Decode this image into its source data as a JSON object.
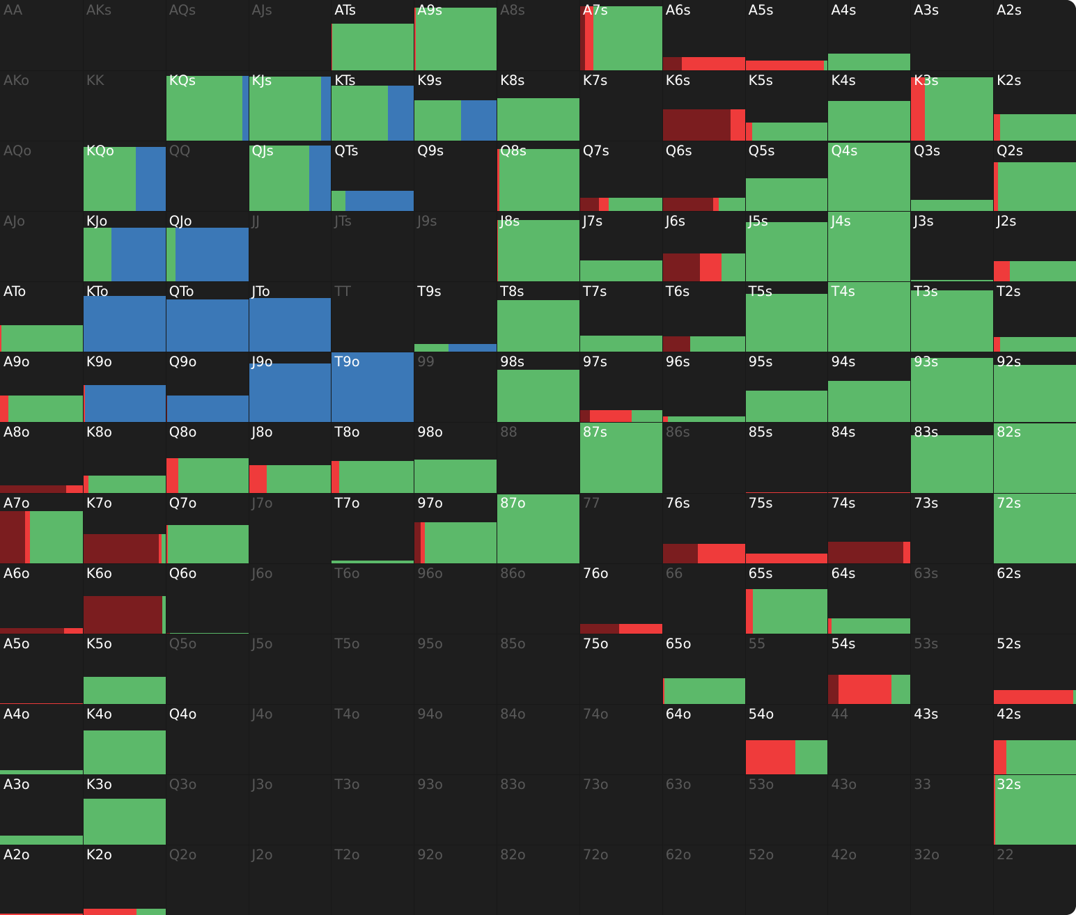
{
  "colors": {
    "background": "#1e1e1e",
    "label_active": "#ffffff",
    "label_inactive": "#595959",
    "green": "#5cb96a",
    "blue": "#3b78b7",
    "red": "#ef3b3b",
    "darkred": "#7b1d1f"
  },
  "legend_note": "",
  "hands": [
    [
      "AA",
      "AKs",
      "AQs",
      "AJs",
      "ATs",
      "A9s",
      "A8s",
      "A7s",
      "A6s",
      "A5s",
      "A4s",
      "A3s",
      "A2s"
    ],
    [
      "AKo",
      "KK",
      "KQs",
      "KJs",
      "KTs",
      "K9s",
      "K8s",
      "K7s",
      "K6s",
      "K5s",
      "K4s",
      "K3s",
      "K2s"
    ],
    [
      "AQo",
      "KQo",
      "QQ",
      "QJs",
      "QTs",
      "Q9s",
      "Q8s",
      "Q7s",
      "Q6s",
      "Q5s",
      "Q4s",
      "Q3s",
      "Q2s"
    ],
    [
      "AJo",
      "KJo",
      "QJo",
      "JJ",
      "JTs",
      "J9s",
      "J8s",
      "J7s",
      "J6s",
      "J5s",
      "J4s",
      "J3s",
      "J2s"
    ],
    [
      "ATo",
      "KTo",
      "QTo",
      "JTo",
      "TT",
      "T9s",
      "T8s",
      "T7s",
      "T6s",
      "T5s",
      "T4s",
      "T3s",
      "T2s"
    ],
    [
      "A9o",
      "K9o",
      "Q9o",
      "J9o",
      "T9o",
      "99",
      "98s",
      "97s",
      "96s",
      "95s",
      "94s",
      "93s",
      "92s"
    ],
    [
      "A8o",
      "K8o",
      "Q8o",
      "J8o",
      "T8o",
      "98o",
      "88",
      "87s",
      "86s",
      "85s",
      "84s",
      "83s",
      "82s"
    ],
    [
      "A7o",
      "K7o",
      "Q7o",
      "J7o",
      "T7o",
      "97o",
      "87o",
      "77",
      "76s",
      "75s",
      "74s",
      "73s",
      "72s"
    ],
    [
      "A6o",
      "K6o",
      "Q6o",
      "J6o",
      "T6o",
      "96o",
      "86o",
      "76o",
      "66",
      "65s",
      "64s",
      "63s",
      "62s"
    ],
    [
      "A5o",
      "K5o",
      "Q5o",
      "J5o",
      "T5o",
      "95o",
      "85o",
      "75o",
      "65o",
      "55",
      "54s",
      "53s",
      "52s"
    ],
    [
      "A4o",
      "K4o",
      "Q4o",
      "J4o",
      "T4o",
      "94o",
      "84o",
      "74o",
      "64o",
      "54o",
      "44",
      "43s",
      "42s"
    ],
    [
      "A3o",
      "K3o",
      "Q3o",
      "J3o",
      "T3o",
      "93o",
      "83o",
      "73o",
      "63o",
      "53o",
      "43o",
      "33",
      "32s"
    ],
    [
      "A2o",
      "K2o",
      "Q2o",
      "J2o",
      "T2o",
      "92o",
      "82o",
      "72o",
      "62o",
      "52o",
      "42o",
      "32o",
      "22"
    ]
  ],
  "inactive": [
    "AA",
    "AKs",
    "AQs",
    "AJs",
    "A8s",
    "AKo",
    "KK",
    "AQo",
    "QQ",
    "AJo",
    "JJ",
    "JTs",
    "J9s",
    "TT",
    "99",
    "88",
    "86s",
    "J7o",
    "77",
    "J6o",
    "T6o",
    "96o",
    "86o",
    "66",
    "63s",
    "Q5o",
    "J5o",
    "T5o",
    "95o",
    "85o",
    "55",
    "53s",
    "J4o",
    "T4o",
    "94o",
    "84o",
    "74o",
    "44",
    "Q3o",
    "J3o",
    "T3o",
    "93o",
    "83o",
    "73o",
    "63o",
    "53o",
    "43o",
    "33",
    "Q2o",
    "J2o",
    "T2o",
    "92o",
    "82o",
    "72o",
    "62o",
    "52o",
    "42o",
    "32o",
    "22"
  ],
  "frequencies": {
    "ATs": {
      "fill": 0.66,
      "mix": [
        [
          "red",
          0.01
        ],
        [
          "green",
          0.99
        ]
      ]
    },
    "A9s": {
      "fill": 0.89,
      "mix": [
        [
          "red",
          0.02
        ],
        [
          "green",
          0.98
        ]
      ]
    },
    "A7s": {
      "fill": 0.91,
      "mix": [
        [
          "darkred",
          0.07
        ],
        [
          "red",
          0.1
        ],
        [
          "green",
          0.83
        ]
      ]
    },
    "A6s": {
      "fill": 0.19,
      "mix": [
        [
          "darkred",
          0.24
        ],
        [
          "red",
          0.76
        ]
      ]
    },
    "A5s": {
      "fill": 0.14,
      "mix": [
        [
          "red",
          0.95
        ],
        [
          "green",
          0.05
        ]
      ]
    },
    "A4s": {
      "fill": 0.24,
      "mix": [
        [
          "green",
          1.0
        ]
      ]
    },
    "KQs": {
      "fill": 0.92,
      "mix": [
        [
          "green",
          0.93
        ],
        [
          "blue",
          0.07
        ]
      ]
    },
    "KJs": {
      "fill": 0.91,
      "mix": [
        [
          "green",
          0.88
        ],
        [
          "blue",
          0.12
        ]
      ]
    },
    "KTs": {
      "fill": 0.78,
      "mix": [
        [
          "green",
          0.69
        ],
        [
          "blue",
          0.31
        ]
      ]
    },
    "K9s": {
      "fill": 0.58,
      "mix": [
        [
          "green",
          0.57
        ],
        [
          "blue",
          0.43
        ]
      ]
    },
    "K8s": {
      "fill": 0.6,
      "mix": [
        [
          "green",
          1.0
        ]
      ]
    },
    "K6s": {
      "fill": 0.45,
      "mix": [
        [
          "darkred",
          0.83
        ],
        [
          "red",
          0.17
        ]
      ]
    },
    "K5s": {
      "fill": 0.26,
      "mix": [
        [
          "red",
          0.09
        ],
        [
          "green",
          0.91
        ]
      ]
    },
    "K4s": {
      "fill": 0.57,
      "mix": [
        [
          "green",
          1.0
        ]
      ]
    },
    "K3s": {
      "fill": 0.9,
      "mix": [
        [
          "red",
          0.17
        ],
        [
          "green",
          0.83
        ]
      ]
    },
    "K2s": {
      "fill": 0.38,
      "mix": [
        [
          "red",
          0.08
        ],
        [
          "green",
          0.92
        ]
      ]
    },
    "KQo": {
      "fill": 0.91,
      "mix": [
        [
          "green",
          0.64
        ],
        [
          "blue",
          0.36
        ]
      ]
    },
    "QJs": {
      "fill": 0.93,
      "mix": [
        [
          "green",
          0.74
        ],
        [
          "blue",
          0.26
        ]
      ]
    },
    "QTs": {
      "fill": 0.29,
      "mix": [
        [
          "green",
          0.17
        ],
        [
          "blue",
          0.83
        ]
      ]
    },
    "Q8s": {
      "fill": 0.88,
      "mix": [
        [
          "red",
          0.03
        ],
        [
          "green",
          0.97
        ]
      ]
    },
    "Q7s": {
      "fill": 0.19,
      "mix": [
        [
          "darkred",
          0.24
        ],
        [
          "red",
          0.11
        ],
        [
          "green",
          0.65
        ]
      ]
    },
    "Q6s": {
      "fill": 0.19,
      "mix": [
        [
          "darkred",
          0.62
        ],
        [
          "red",
          0.06
        ],
        [
          "green",
          0.32
        ]
      ]
    },
    "Q5s": {
      "fill": 0.47,
      "mix": [
        [
          "green",
          1.0
        ]
      ]
    },
    "Q4s": {
      "fill": 0.97,
      "mix": [
        [
          "green",
          1.0
        ]
      ]
    },
    "Q3s": {
      "fill": 0.16,
      "mix": [
        [
          "green",
          1.0
        ]
      ]
    },
    "Q2s": {
      "fill": 0.69,
      "mix": [
        [
          "red",
          0.06
        ],
        [
          "green",
          0.94
        ]
      ]
    },
    "KJo": {
      "fill": 0.76,
      "mix": [
        [
          "green",
          0.35
        ],
        [
          "blue",
          0.65
        ]
      ]
    },
    "QJo": {
      "fill": 0.76,
      "mix": [
        [
          "green",
          0.12
        ],
        [
          "blue",
          0.88
        ]
      ]
    },
    "J8s": {
      "fill": 0.87,
      "mix": [
        [
          "red",
          0.02
        ],
        [
          "green",
          0.98
        ]
      ]
    },
    "J7s": {
      "fill": 0.3,
      "mix": [
        [
          "green",
          1.0
        ]
      ]
    },
    "J6s": {
      "fill": 0.4,
      "mix": [
        [
          "darkred",
          0.46
        ],
        [
          "red",
          0.26
        ],
        [
          "green",
          0.28
        ]
      ]
    },
    "J5s": {
      "fill": 0.84,
      "mix": [
        [
          "green",
          1.0
        ]
      ]
    },
    "J4s": {
      "fill": 0.99,
      "mix": [
        [
          "green",
          1.0
        ]
      ]
    },
    "J3s": {
      "fill": 0.02,
      "mix": [
        [
          "green",
          1.0
        ]
      ]
    },
    "J2s": {
      "fill": 0.29,
      "mix": [
        [
          "red",
          0.2
        ],
        [
          "green",
          0.8
        ]
      ]
    },
    "ATo": {
      "fill": 0.38,
      "mix": [
        [
          "red",
          0.02
        ],
        [
          "green",
          0.98
        ]
      ]
    },
    "KTo": {
      "fill": 0.8,
      "mix": [
        [
          "blue",
          1.0
        ]
      ]
    },
    "QTo": {
      "fill": 0.75,
      "mix": [
        [
          "blue",
          1.0
        ]
      ]
    },
    "JTo": {
      "fill": 0.77,
      "mix": [
        [
          "blue",
          1.0
        ]
      ]
    },
    "T9s": {
      "fill": 0.11,
      "mix": [
        [
          "green",
          0.42
        ],
        [
          "blue",
          0.58
        ]
      ]
    },
    "T8s": {
      "fill": 0.74,
      "mix": [
        [
          "green",
          1.0
        ]
      ]
    },
    "T7s": {
      "fill": 0.23,
      "mix": [
        [
          "green",
          1.0
        ]
      ]
    },
    "T6s": {
      "fill": 0.22,
      "mix": [
        [
          "darkred",
          0.34
        ],
        [
          "green",
          0.66
        ]
      ]
    },
    "T5s": {
      "fill": 0.82,
      "mix": [
        [
          "green",
          1.0
        ]
      ]
    },
    "T4s": {
      "fill": 1.0,
      "mix": [
        [
          "green",
          1.0
        ]
      ]
    },
    "T3s": {
      "fill": 0.87,
      "mix": [
        [
          "green",
          1.0
        ]
      ]
    },
    "T2s": {
      "fill": 0.21,
      "mix": [
        [
          "red",
          0.08
        ],
        [
          "green",
          0.92
        ]
      ]
    },
    "A9o": {
      "fill": 0.38,
      "mix": [
        [
          "red",
          0.1
        ],
        [
          "green",
          0.9
        ]
      ]
    },
    "K9o": {
      "fill": 0.53,
      "mix": [
        [
          "red",
          0.03
        ],
        [
          "blue",
          0.97
        ]
      ]
    },
    "Q9o": {
      "fill": 0.38,
      "mix": [
        [
          "darkred",
          0.02
        ],
        [
          "blue",
          0.98
        ]
      ]
    },
    "J9o": {
      "fill": 0.84,
      "mix": [
        [
          "blue",
          1.0
        ]
      ]
    },
    "T9o": {
      "fill": 1.0,
      "mix": [
        [
          "blue",
          1.0
        ]
      ]
    },
    "98s": {
      "fill": 0.75,
      "mix": [
        [
          "green",
          1.0
        ]
      ]
    },
    "97s": {
      "fill": 0.17,
      "mix": [
        [
          "darkred",
          0.13
        ],
        [
          "red",
          0.5
        ],
        [
          "green",
          0.37
        ]
      ]
    },
    "96s": {
      "fill": 0.08,
      "mix": [
        [
          "red",
          0.07
        ],
        [
          "green",
          0.93
        ]
      ]
    },
    "95s": {
      "fill": 0.45,
      "mix": [
        [
          "green",
          1.0
        ]
      ]
    },
    "94s": {
      "fill": 0.59,
      "mix": [
        [
          "green",
          1.0
        ]
      ]
    },
    "93s": {
      "fill": 0.91,
      "mix": [
        [
          "green",
          1.0
        ]
      ]
    },
    "92s": {
      "fill": 0.82,
      "mix": [
        [
          "green",
          1.0
        ]
      ]
    },
    "A8o": {
      "fill": 0.1,
      "mix": [
        [
          "darkred",
          0.8
        ],
        [
          "red",
          0.2
        ]
      ]
    },
    "K8o": {
      "fill": 0.24,
      "mix": [
        [
          "red",
          0.07
        ],
        [
          "green",
          0.93
        ]
      ]
    },
    "Q8o": {
      "fill": 0.49,
      "mix": [
        [
          "red",
          0.15
        ],
        [
          "green",
          0.85
        ]
      ]
    },
    "J8o": {
      "fill": 0.39,
      "mix": [
        [
          "red",
          0.22
        ],
        [
          "green",
          0.78
        ]
      ]
    },
    "T8o": {
      "fill": 0.45,
      "mix": [
        [
          "red",
          0.1
        ],
        [
          "green",
          0.9
        ]
      ]
    },
    "98o": {
      "fill": 0.47,
      "mix": [
        [
          "green",
          1.0
        ]
      ]
    },
    "87s": {
      "fill": 0.99,
      "mix": [
        [
          "green",
          1.0
        ]
      ]
    },
    "85s": {
      "fill": 0.01,
      "mix": [
        [
          "red",
          1.0
        ]
      ]
    },
    "84s": {
      "fill": 0.01,
      "mix": [
        [
          "red",
          1.0
        ]
      ]
    },
    "83s": {
      "fill": 0.82,
      "mix": [
        [
          "green",
          1.0
        ]
      ]
    },
    "82s": {
      "fill": 0.98,
      "mix": [
        [
          "green",
          1.0
        ]
      ]
    },
    "A7o": {
      "fill": 0.74,
      "mix": [
        [
          "darkred",
          0.3
        ],
        [
          "red",
          0.06
        ],
        [
          "green",
          0.64
        ]
      ]
    },
    "K7o": {
      "fill": 0.41,
      "mix": [
        [
          "darkred",
          0.92
        ],
        [
          "red",
          0.03
        ],
        [
          "green",
          0.05
        ]
      ]
    },
    "Q7o": {
      "fill": 0.54,
      "mix": [
        [
          "red",
          0.03
        ],
        [
          "green",
          0.97
        ]
      ]
    },
    "T7o": {
      "fill": 0.04,
      "mix": [
        [
          "green",
          1.0
        ]
      ]
    },
    "97o": {
      "fill": 0.58,
      "mix": [
        [
          "darkred",
          0.08
        ],
        [
          "red",
          0.05
        ],
        [
          "green",
          0.87
        ]
      ]
    },
    "87o": {
      "fill": 0.98,
      "mix": [
        [
          "green",
          1.0
        ]
      ]
    },
    "76s": {
      "fill": 0.27,
      "mix": [
        [
          "darkred",
          0.43
        ],
        [
          "red",
          0.57
        ]
      ]
    },
    "75s": {
      "fill": 0.13,
      "mix": [
        [
          "red",
          1.0
        ]
      ]
    },
    "74s": {
      "fill": 0.3,
      "mix": [
        [
          "darkred",
          0.91
        ],
        [
          "red",
          0.09
        ]
      ]
    },
    "72s": {
      "fill": 1.0,
      "mix": [
        [
          "green",
          1.0
        ]
      ]
    },
    "A6o": {
      "fill": 0.08,
      "mix": [
        [
          "darkred",
          0.77
        ],
        [
          "red",
          0.23
        ]
      ]
    },
    "K6o": {
      "fill": 0.53,
      "mix": [
        [
          "darkred",
          0.96
        ],
        [
          "green",
          0.04
        ]
      ]
    },
    "Q6o": {
      "fill": 0.01,
      "mix": [
        [
          "darkred",
          0.05
        ],
        [
          "green",
          0.95
        ]
      ]
    },
    "76o": {
      "fill": 0.14,
      "mix": [
        [
          "darkred",
          0.48
        ],
        [
          "red",
          0.52
        ]
      ]
    },
    "65s": {
      "fill": 0.63,
      "mix": [
        [
          "red",
          0.1
        ],
        [
          "green",
          0.9
        ]
      ]
    },
    "64s": {
      "fill": 0.21,
      "mix": [
        [
          "red",
          0.05
        ],
        [
          "green",
          0.95
        ]
      ]
    },
    "A5o": {
      "fill": 0.01,
      "mix": [
        [
          "red",
          1.0
        ]
      ]
    },
    "K5o": {
      "fill": 0.38,
      "mix": [
        [
          "green",
          1.0
        ]
      ]
    },
    "65o": {
      "fill": 0.36,
      "mix": [
        [
          "red",
          0.03
        ],
        [
          "green",
          0.97
        ]
      ]
    },
    "54s": {
      "fill": 0.41,
      "mix": [
        [
          "darkred",
          0.13
        ],
        [
          "red",
          0.64
        ],
        [
          "green",
          0.23
        ]
      ]
    },
    "52s": {
      "fill": 0.2,
      "mix": [
        [
          "red",
          0.97
        ],
        [
          "green",
          0.03
        ]
      ]
    },
    "A4o": {
      "fill": 0.06,
      "mix": [
        [
          "green",
          1.0
        ]
      ]
    },
    "K4o": {
      "fill": 0.62,
      "mix": [
        [
          "green",
          1.0
        ]
      ]
    },
    "54o": {
      "fill": 0.48,
      "mix": [
        [
          "red",
          0.61
        ],
        [
          "green",
          0.39
        ]
      ]
    },
    "42s": {
      "fill": 0.48,
      "mix": [
        [
          "red",
          0.16
        ],
        [
          "green",
          0.84
        ]
      ]
    },
    "A3o": {
      "fill": 0.13,
      "mix": [
        [
          "green",
          1.0
        ]
      ]
    },
    "K3o": {
      "fill": 0.65,
      "mix": [
        [
          "green",
          1.0
        ]
      ]
    },
    "32s": {
      "fill": 0.99,
      "mix": [
        [
          "red",
          0.02
        ],
        [
          "green",
          0.98
        ]
      ]
    },
    "A2o": {
      "fill": 0.02,
      "mix": [
        [
          "red",
          1.0
        ]
      ]
    },
    "K2o": {
      "fill": 0.09,
      "mix": [
        [
          "red",
          0.65
        ],
        [
          "green",
          0.35
        ]
      ]
    }
  }
}
